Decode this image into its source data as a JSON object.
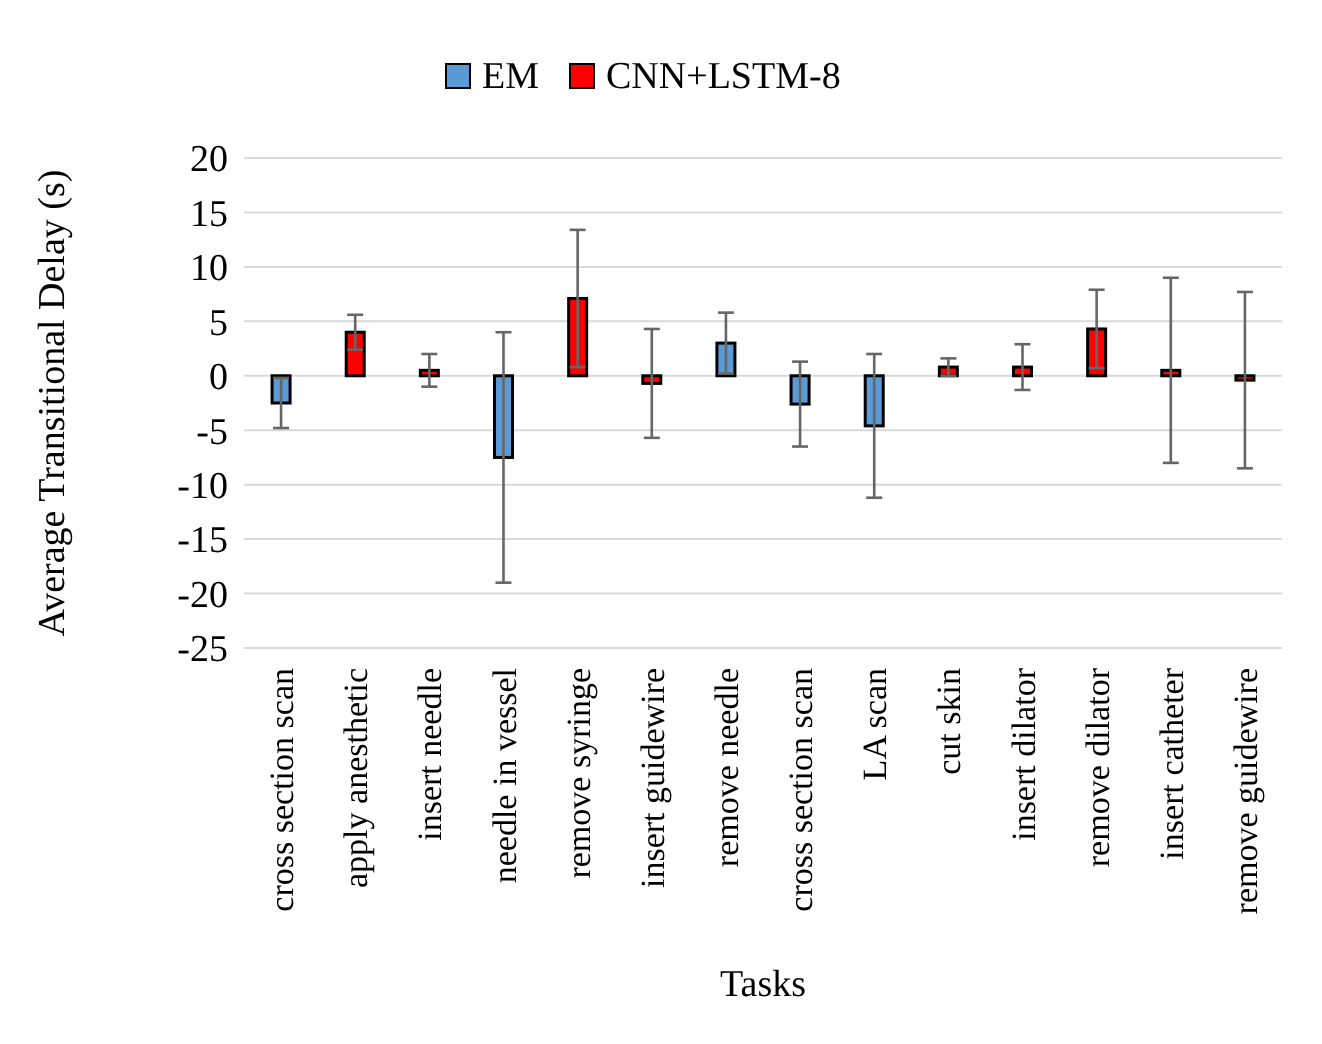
{
  "chart_data": {
    "type": "bar",
    "xlabel": "Tasks",
    "ylabel": "Average  Transitional  Delay  (s)",
    "categories": [
      "cross section scan",
      "apply anesthetic",
      "insert needle",
      "needle in vessel",
      "remove syringe",
      "insert guidewire",
      "remove needle",
      "cross section scan",
      "LA scan",
      "cut skin",
      "insert dilator",
      "remove dilator",
      "insert catheter",
      "remove guidewire"
    ],
    "series": [
      {
        "name": "EM",
        "color": "#5b9bd5",
        "values": [
          -2.5,
          null,
          null,
          -7.5,
          null,
          null,
          3.0,
          -2.6,
          -4.6,
          null,
          null,
          null,
          null,
          null
        ],
        "errors": [
          2.3,
          null,
          null,
          11.5,
          null,
          null,
          2.8,
          3.9,
          6.6,
          null,
          null,
          null,
          null,
          null
        ]
      },
      {
        "name": "CNN+LSTM-8",
        "color": "#ff0000",
        "values": [
          null,
          4.0,
          0.5,
          null,
          7.1,
          -0.7,
          null,
          null,
          null,
          0.8,
          0.8,
          4.3,
          0.5,
          -0.4
        ],
        "errors": [
          null,
          1.6,
          1.5,
          null,
          6.3,
          5.0,
          null,
          null,
          null,
          0.8,
          2.1,
          3.6,
          8.5,
          8.1
        ]
      }
    ],
    "ylim": [
      -25,
      20
    ],
    "yticks": [
      -25,
      -20,
      -15,
      -10,
      -5,
      0,
      5,
      10,
      15,
      20
    ],
    "grid": "y",
    "legend": "top"
  }
}
